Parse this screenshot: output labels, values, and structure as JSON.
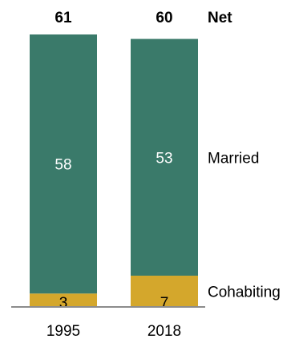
{
  "chart_data": {
    "type": "bar",
    "stacked": true,
    "categories": [
      "1995",
      "2018"
    ],
    "series": [
      {
        "name": "Cohabiting",
        "values": [
          3,
          7
        ],
        "labels": [
          "3",
          "7"
        ],
        "color": "#d4a72c",
        "label_color": "#000000"
      },
      {
        "name": "Married",
        "values": [
          58,
          53
        ],
        "labels": [
          "58",
          "53"
        ],
        "color": "#3a7a6a",
        "label_color": "#ffffff"
      }
    ],
    "totals": [
      61,
      60
    ],
    "total_labels": [
      "61",
      "60"
    ],
    "total_header": "Net",
    "ylim": [
      0,
      61
    ],
    "grid": false,
    "legend": "right, inline labels"
  }
}
